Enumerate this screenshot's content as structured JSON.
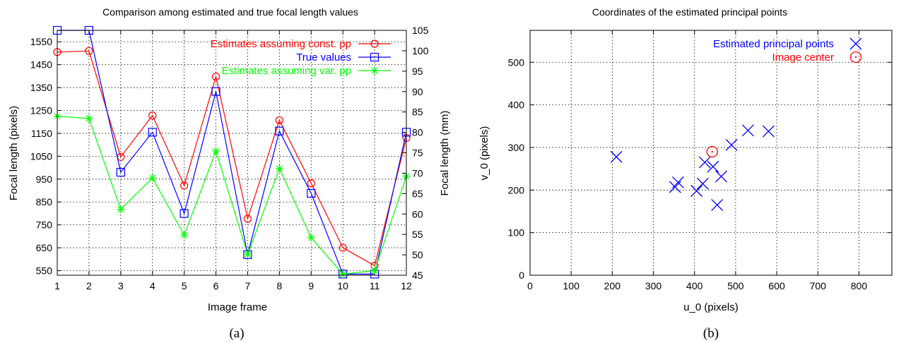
{
  "chart_data": [
    {
      "type": "line",
      "title": "Comparison among estimated and true focal length values",
      "xlabel": "Image frame",
      "ylabel": "Focal length (pixels)",
      "y2label": "Focal length (mm)",
      "caption": "(a)",
      "x": [
        1,
        2,
        3,
        4,
        5,
        6,
        7,
        8,
        9,
        10,
        11,
        12
      ],
      "xlim": [
        1,
        12
      ],
      "ylim": [
        530,
        1600
      ],
      "y2lim": [
        45,
        105
      ],
      "yticks": [
        550,
        650,
        750,
        850,
        950,
        1050,
        1150,
        1250,
        1350,
        1450,
        1550
      ],
      "y2ticks": [
        45,
        50,
        55,
        60,
        65,
        70,
        75,
        80,
        85,
        90,
        95,
        100,
        105
      ],
      "grid": true,
      "legend_position": "top-right",
      "series": [
        {
          "name": "Estimates assuming const. pp",
          "color": "#ff0000",
          "marker": "circle",
          "values": [
            1505,
            1510,
            1047,
            1228,
            922,
            1398,
            777,
            1207,
            932,
            650,
            572,
            1130
          ]
        },
        {
          "name": "True values",
          "color": "#0000ff",
          "marker": "square",
          "values": [
            1600,
            1600,
            980,
            1155,
            800,
            1333,
            620,
            1160,
            888,
            535,
            535,
            1155
          ]
        },
        {
          "name": "Estimates assuming var. pp",
          "color": "#00ff00",
          "marker": "star",
          "values": [
            1225,
            1215,
            818,
            955,
            705,
            1073,
            620,
            997,
            694,
            535,
            550,
            962
          ]
        }
      ]
    },
    {
      "type": "scatter",
      "title": "Coordinates of the estimated principal points",
      "xlabel": "u_0 (pixels)",
      "ylabel": "v_0 (pixels)",
      "caption": "(b)",
      "xlim": [
        0,
        880
      ],
      "ylim": [
        0,
        575
      ],
      "xticks": [
        0,
        100,
        200,
        300,
        400,
        500,
        600,
        700,
        800
      ],
      "yticks": [
        0,
        100,
        200,
        300,
        400,
        500
      ],
      "grid": true,
      "legend_position": "top-right",
      "series": [
        {
          "name": "Estimated principal points",
          "color": "#0000ff",
          "marker": "x",
          "points": [
            [
              210,
              278
            ],
            [
              353,
              207
            ],
            [
              360,
              218
            ],
            [
              405,
              198
            ],
            [
              420,
              215
            ],
            [
              425,
              265
            ],
            [
              445,
              255
            ],
            [
              455,
              165
            ],
            [
              465,
              232
            ],
            [
              490,
              306
            ],
            [
              530,
              340
            ],
            [
              580,
              338
            ]
          ]
        },
        {
          "name": "Image center",
          "color": "#ff0000",
          "marker": "dotted-circle",
          "points": [
            [
              443,
              290
            ]
          ]
        }
      ]
    }
  ]
}
